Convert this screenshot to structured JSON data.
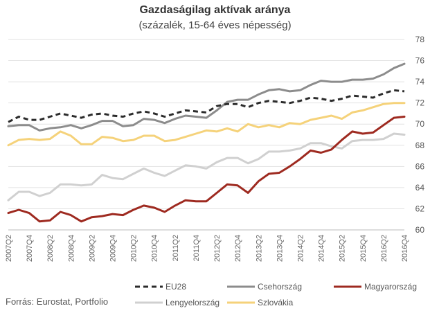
{
  "chart_data": {
    "type": "line",
    "title": "Gazdaságilag aktívak aránya",
    "subtitle": "(százalék, 15-64 éves népesség)",
    "source": "Forrás: Eurostat, Portfolio",
    "ylim": [
      60,
      78
    ],
    "y_ticks": [
      60,
      62,
      64,
      66,
      68,
      70,
      72,
      74,
      76,
      78
    ],
    "grid": true,
    "categories": [
      "2007Q2",
      "2007Q3",
      "2007Q4",
      "2008Q1",
      "2008Q2",
      "2008Q3",
      "2008Q4",
      "2009Q1",
      "2009Q2",
      "2009Q3",
      "2009Q4",
      "2010Q1",
      "2010Q2",
      "2010Q3",
      "2010Q4",
      "2011Q1",
      "2011Q2",
      "2011Q3",
      "2011Q4",
      "2012Q1",
      "2012Q2",
      "2012Q3",
      "2012Q4",
      "2013Q1",
      "2013Q2",
      "2013Q3",
      "2013Q4",
      "2014Q1",
      "2014Q2",
      "2014Q3",
      "2014Q4",
      "2015Q1",
      "2015Q2",
      "2015Q3",
      "2015Q4",
      "2016Q1",
      "2016Q2",
      "2016Q3",
      "2016Q4"
    ],
    "x_tick_labels": [
      "2007Q2",
      "2007Q4",
      "2008Q2",
      "2008Q4",
      "2009Q2",
      "2009Q4",
      "2010Q2",
      "2010Q4",
      "2011Q2",
      "2011Q4",
      "2012Q2",
      "2012Q4",
      "2013Q2",
      "2013Q4",
      "2014Q2",
      "2014Q4",
      "2015Q2",
      "2015Q4",
      "2016Q2",
      "2016Q4"
    ],
    "series": [
      {
        "name": "EU28",
        "color": "#2b2b2b",
        "dash": true,
        "values": [
          70.2,
          70.7,
          70.4,
          70.4,
          70.7,
          71.0,
          70.8,
          70.6,
          70.9,
          71.0,
          70.8,
          70.7,
          71.0,
          71.2,
          71.0,
          70.7,
          71.0,
          71.3,
          71.2,
          71.1,
          71.7,
          71.9,
          71.9,
          71.6,
          72.0,
          72.2,
          72.1,
          72.0,
          72.2,
          72.5,
          72.4,
          72.2,
          72.4,
          72.7,
          72.6,
          72.5,
          72.9,
          73.2,
          73.1
        ]
      },
      {
        "name": "Csehország",
        "color": "#8c8c8c",
        "dash": false,
        "values": [
          69.8,
          69.9,
          69.9,
          69.4,
          69.6,
          69.7,
          69.9,
          69.6,
          69.9,
          70.3,
          70.3,
          69.8,
          69.9,
          70.5,
          70.4,
          70.1,
          70.5,
          70.8,
          70.7,
          70.6,
          71.3,
          72.1,
          72.3,
          72.3,
          72.8,
          73.2,
          73.3,
          73.1,
          73.2,
          73.7,
          74.1,
          74.0,
          74.0,
          74.2,
          74.2,
          74.3,
          74.7,
          75.3,
          75.7
        ]
      },
      {
        "name": "Magyarország",
        "color": "#9e2a20",
        "dash": false,
        "values": [
          61.6,
          61.9,
          61.6,
          60.8,
          60.9,
          61.7,
          61.4,
          60.8,
          61.2,
          61.3,
          61.5,
          61.4,
          61.9,
          62.3,
          62.1,
          61.7,
          62.3,
          62.8,
          62.7,
          62.7,
          63.5,
          64.3,
          64.2,
          63.5,
          64.6,
          65.3,
          65.4,
          66.0,
          66.7,
          67.5,
          67.3,
          67.6,
          68.5,
          69.3,
          69.1,
          69.2,
          69.9,
          70.6,
          70.7
        ]
      },
      {
        "name": "Lengyelország",
        "color": "#d0d0d0",
        "dash": false,
        "values": [
          62.8,
          63.6,
          63.6,
          63.2,
          63.5,
          64.3,
          64.3,
          64.2,
          64.3,
          65.2,
          64.9,
          64.8,
          65.3,
          65.8,
          65.4,
          65.1,
          65.6,
          66.1,
          66.0,
          65.8,
          66.4,
          66.8,
          66.8,
          66.3,
          66.7,
          67.4,
          67.4,
          67.5,
          67.7,
          68.2,
          68.2,
          67.9,
          67.7,
          68.4,
          68.5,
          68.5,
          68.6,
          69.1,
          69.0
        ]
      },
      {
        "name": "Szlovákia",
        "color": "#f5d27a",
        "dash": false,
        "values": [
          68.0,
          68.5,
          68.6,
          68.5,
          68.6,
          69.3,
          68.9,
          68.1,
          68.1,
          68.8,
          68.7,
          68.4,
          68.5,
          68.9,
          68.9,
          68.4,
          68.5,
          68.8,
          69.1,
          69.4,
          69.3,
          69.6,
          69.3,
          70.0,
          69.7,
          69.9,
          69.7,
          70.1,
          70.0,
          70.4,
          70.6,
          70.8,
          70.5,
          71.1,
          71.3,
          71.6,
          71.9,
          72.0,
          72.0
        ]
      }
    ],
    "legend": [
      {
        "name": "EU28"
      },
      {
        "name": "Csehország"
      },
      {
        "name": "Magyarország"
      },
      {
        "name": "Lengyelország"
      },
      {
        "name": "Szlovákia"
      }
    ]
  }
}
